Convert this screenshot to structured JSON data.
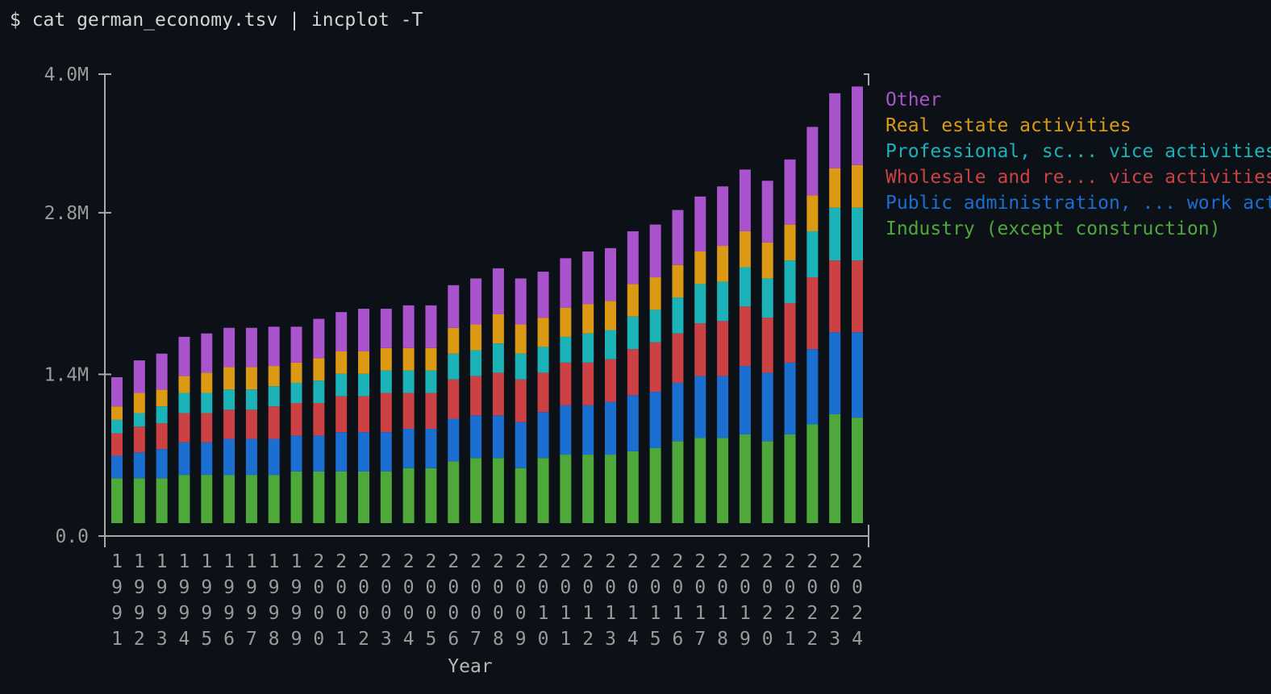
{
  "terminal": {
    "command": "$ cat german_economy.tsv | incplot -T"
  },
  "chart_data": {
    "type": "bar",
    "stacked": true,
    "title": "",
    "xlabel": "Year",
    "ylabel": "",
    "ylim": [
      0,
      4000000
    ],
    "y_ticks": [
      {
        "value": 0,
        "label": "0.0"
      },
      {
        "value": 1400000,
        "label": "1.4M"
      },
      {
        "value": 2800000,
        "label": "2.8M"
      },
      {
        "value": 4000000,
        "label": "4.0M"
      }
    ],
    "legend_position": "top-right",
    "categories": [
      "1991",
      "1992",
      "1993",
      "1994",
      "1995",
      "1996",
      "1997",
      "1998",
      "1999",
      "2000",
      "2001",
      "2002",
      "2003",
      "2004",
      "2005",
      "2006",
      "2007",
      "2008",
      "2009",
      "2010",
      "2011",
      "2012",
      "2013",
      "2014",
      "2015",
      "2016",
      "2017",
      "2018",
      "2019",
      "2020",
      "2021",
      "2022",
      "2023",
      "2024"
    ],
    "series": [
      {
        "name": "Industry (except construction)",
        "color": "#4fa83a",
        "values": [
          400000,
          400000,
          400000,
          430000,
          430000,
          430000,
          430000,
          430000,
          460000,
          460000,
          460000,
          460000,
          460000,
          490000,
          490000,
          550000,
          580000,
          580000,
          490000,
          580000,
          610000,
          610000,
          610000,
          640000,
          670000,
          730000,
          760000,
          760000,
          790000,
          730000,
          790000,
          880000,
          970000,
          940000
        ]
      },
      {
        "name": "Public administration, ... work activities",
        "color": "#1a6fd1",
        "values": [
          200000,
          230000,
          260000,
          290000,
          290000,
          320000,
          320000,
          320000,
          320000,
          320000,
          350000,
          350000,
          350000,
          350000,
          350000,
          380000,
          380000,
          380000,
          410000,
          410000,
          440000,
          440000,
          470000,
          500000,
          500000,
          520000,
          550000,
          550000,
          610000,
          610000,
          640000,
          670000,
          730000,
          760000
        ]
      },
      {
        "name": "Wholesale and re... vice activities",
        "color": "#cc4143",
        "values": [
          200000,
          230000,
          230000,
          260000,
          260000,
          260000,
          260000,
          290000,
          290000,
          290000,
          320000,
          320000,
          350000,
          320000,
          320000,
          350000,
          350000,
          380000,
          380000,
          350000,
          380000,
          380000,
          380000,
          410000,
          440000,
          440000,
          470000,
          490000,
          530000,
          490000,
          530000,
          640000,
          640000,
          640000
        ]
      },
      {
        "name": "Professional, sc... vice activities",
        "color": "#1bb2b8",
        "values": [
          120000,
          120000,
          150000,
          180000,
          180000,
          180000,
          180000,
          180000,
          180000,
          200000,
          200000,
          200000,
          200000,
          200000,
          200000,
          230000,
          230000,
          260000,
          230000,
          230000,
          230000,
          260000,
          260000,
          290000,
          290000,
          320000,
          350000,
          350000,
          350000,
          350000,
          380000,
          410000,
          470000,
          470000
        ]
      },
      {
        "name": "Real estate activities",
        "color": "#dc9a14",
        "values": [
          120000,
          180000,
          150000,
          150000,
          180000,
          200000,
          200000,
          180000,
          180000,
          200000,
          200000,
          200000,
          200000,
          200000,
          200000,
          230000,
          230000,
          260000,
          260000,
          260000,
          260000,
          260000,
          260000,
          290000,
          290000,
          290000,
          290000,
          320000,
          320000,
          320000,
          320000,
          320000,
          350000,
          380000
        ]
      },
      {
        "name": "Other",
        "color": "#a954cc",
        "values": [
          260000,
          290000,
          320000,
          350000,
          350000,
          350000,
          350000,
          350000,
          320000,
          350000,
          350000,
          380000,
          350000,
          380000,
          380000,
          380000,
          410000,
          410000,
          410000,
          410000,
          440000,
          470000,
          470000,
          470000,
          470000,
          490000,
          490000,
          530000,
          550000,
          550000,
          580000,
          610000,
          670000,
          700000
        ]
      }
    ]
  }
}
